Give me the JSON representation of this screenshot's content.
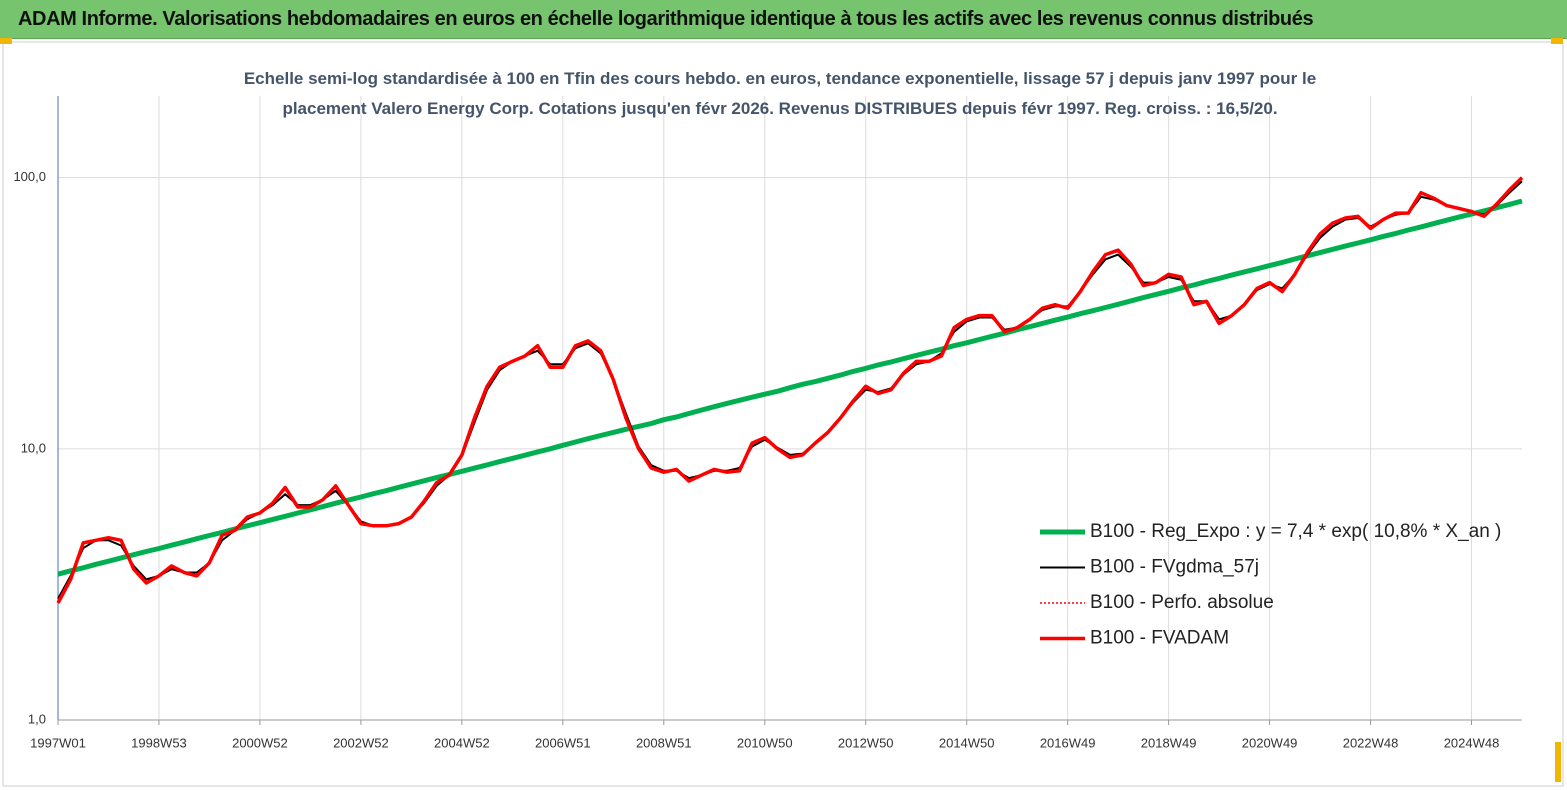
{
  "header": {
    "title": "ADAM Informe. Valorisations hebdomadaires en euros en échelle logarithmique identique à tous les actifs avec les revenus connus distribués"
  },
  "chart_data": {
    "type": "line",
    "title": "Echelle semi-log standardisée à 100 en Tfin des cours hebdo. en euros, tendance exponentielle, lissage 57 j depuis janv 1997 pour le placement Valero Energy Corp. Cotations jusqu'en févr 2026. Revenus DISTRIBUES depuis févr 1997. Reg. croiss. : 16,5/20.",
    "y_scale": "log",
    "grid": true,
    "legend": "right",
    "ylim": [
      1,
      200
    ],
    "yticks": [
      {
        "value": 1,
        "label": "1,0"
      },
      {
        "value": 10,
        "label": "10,0"
      },
      {
        "value": 100,
        "label": "100,0"
      }
    ],
    "categories": [
      "1997W01",
      null,
      null,
      null,
      null,
      null,
      null,
      null,
      "1998W53",
      null,
      null,
      null,
      null,
      null,
      null,
      null,
      "2000W52",
      null,
      null,
      null,
      null,
      null,
      null,
      null,
      "2002W52",
      null,
      null,
      null,
      null,
      null,
      null,
      null,
      "2004W52",
      null,
      null,
      null,
      null,
      null,
      null,
      null,
      "2006W51",
      null,
      null,
      null,
      null,
      null,
      null,
      null,
      "2008W51",
      null,
      null,
      null,
      null,
      null,
      null,
      null,
      "2010W50",
      null,
      null,
      null,
      null,
      null,
      null,
      null,
      "2012W50",
      null,
      null,
      null,
      null,
      null,
      null,
      null,
      "2014W50",
      null,
      null,
      null,
      null,
      null,
      null,
      null,
      "2016W49",
      null,
      null,
      null,
      null,
      null,
      null,
      null,
      "2018W49",
      null,
      null,
      null,
      null,
      null,
      null,
      null,
      "2020W49",
      null,
      null,
      null,
      null,
      null,
      null,
      null,
      "2022W48",
      null,
      null,
      null,
      null,
      null,
      null,
      null,
      "2024W48",
      null,
      null,
      null,
      null
    ],
    "series": [
      {
        "name": "B100 - Reg_Expo : y = 7,4 * exp( 10,8% *  X_an )",
        "color": "#00b050",
        "width": 5,
        "style": "solid",
        "values": [
          3.45,
          3.55,
          3.64,
          3.75,
          3.85,
          3.96,
          4.07,
          4.18,
          4.29,
          4.41,
          4.53,
          4.66,
          4.79,
          4.92,
          5.06,
          5.2,
          5.34,
          5.49,
          5.64,
          5.8,
          5.96,
          6.12,
          6.3,
          6.47,
          6.64,
          6.83,
          7.01,
          7.21,
          7.41,
          7.62,
          7.83,
          8.04,
          8.26,
          8.49,
          8.72,
          8.97,
          9.22,
          9.47,
          9.74,
          10.0,
          10.3,
          10.6,
          10.9,
          11.2,
          11.5,
          11.8,
          12.1,
          12.4,
          12.8,
          13.1,
          13.5,
          13.9,
          14.3,
          14.7,
          15.1,
          15.5,
          15.9,
          16.3,
          16.8,
          17.3,
          17.7,
          18.2,
          18.7,
          19.3,
          19.8,
          20.4,
          20.9,
          21.5,
          22.1,
          22.7,
          23.3,
          24.0,
          24.6,
          25.3,
          26.0,
          26.7,
          27.5,
          28.2,
          29.0,
          29.8,
          30.6,
          31.5,
          32.3,
          33.2,
          34.1,
          35.1,
          36.1,
          37.1,
          38.1,
          39.2,
          40.2,
          41.4,
          42.5,
          43.7,
          44.9,
          46.1,
          47.4,
          48.7,
          50.1,
          51.5,
          52.9,
          54.4,
          55.9,
          57.4,
          59.0,
          60.7,
          62.3,
          64.1,
          65.8,
          67.7,
          69.6,
          71.5,
          73.4,
          75.4,
          77.5,
          79.7,
          82.0
        ]
      },
      {
        "name": "B100 - FVgdma_57j",
        "color": "#000000",
        "width": 2,
        "style": "solid",
        "values": [
          2.8,
          3.4,
          4.3,
          4.6,
          4.6,
          4.4,
          3.7,
          3.3,
          3.4,
          3.6,
          3.5,
          3.5,
          3.8,
          4.6,
          5.0,
          5.5,
          5.8,
          6.2,
          6.8,
          6.2,
          6.2,
          6.5,
          7.0,
          6.2,
          5.4,
          5.2,
          5.2,
          5.3,
          5.6,
          6.3,
          7.3,
          8.0,
          9.4,
          12.5,
          16.5,
          19.5,
          21,
          22,
          23,
          20.5,
          20.5,
          23.5,
          24.5,
          22.5,
          18,
          13.5,
          10.2,
          8.7,
          8.3,
          8.3,
          7.8,
          8.0,
          8.3,
          8.3,
          8.5,
          10.2,
          10.8,
          10.1,
          9.5,
          9.6,
          10.5,
          11.5,
          13,
          14.8,
          16.5,
          16.2,
          16.7,
          18.8,
          20.5,
          21,
          22.5,
          27,
          29.5,
          30.5,
          30.5,
          27.5,
          28,
          30,
          32.5,
          33.5,
          33.5,
          38,
          44,
          50,
          52,
          47,
          41,
          41,
          43,
          42,
          35,
          35,
          30,
          31,
          34,
          38.5,
          40.5,
          39,
          44,
          52,
          60,
          66,
          70,
          71,
          66,
          70,
          73,
          74,
          85,
          83,
          79,
          77,
          75,
          73,
          79,
          88,
          97
        ]
      },
      {
        "name": "B100 - Perfo. absolue",
        "color": "#ff0000",
        "width": 1.5,
        "style": "dotted",
        "values": [
          2.7,
          3.3,
          4.5,
          4.6,
          4.7,
          4.6,
          3.6,
          3.2,
          3.4,
          3.7,
          3.5,
          3.4,
          3.8,
          4.8,
          5.0,
          5.6,
          5.8,
          6.3,
          7.2,
          6.1,
          6.1,
          6.5,
          7.3,
          6.2,
          5.3,
          5.2,
          5.2,
          5.3,
          5.6,
          6.4,
          7.5,
          8.0,
          9.5,
          13,
          17,
          20,
          21,
          22,
          24,
          20,
          20,
          24,
          25,
          23,
          18,
          13,
          10,
          8.5,
          8.2,
          8.4,
          7.6,
          8.0,
          8.4,
          8.2,
          8.3,
          10.5,
          11,
          10,
          9.3,
          9.5,
          10.5,
          11.5,
          13,
          15,
          17,
          16,
          16.5,
          19,
          21,
          21,
          22,
          28,
          30,
          31,
          31,
          27,
          28,
          30,
          33,
          34,
          33,
          38,
          45,
          52,
          54,
          48,
          40,
          41,
          44,
          43,
          34,
          35,
          29,
          31,
          34,
          39,
          41,
          38,
          44,
          53,
          62,
          68,
          71,
          72,
          65,
          70,
          74,
          74,
          88,
          84,
          79,
          77,
          75,
          72,
          80,
          90,
          100
        ]
      },
      {
        "name": "B100 - FVADAM",
        "color": "#ff0000",
        "width": 3.5,
        "style": "solid",
        "values": [
          2.7,
          3.3,
          4.5,
          4.6,
          4.7,
          4.6,
          3.6,
          3.2,
          3.4,
          3.7,
          3.5,
          3.4,
          3.8,
          4.8,
          5.0,
          5.6,
          5.8,
          6.3,
          7.2,
          6.1,
          6.1,
          6.5,
          7.3,
          6.2,
          5.3,
          5.2,
          5.2,
          5.3,
          5.6,
          6.4,
          7.5,
          8.0,
          9.5,
          13,
          17,
          20,
          21,
          22,
          24,
          20,
          20,
          24,
          25,
          23,
          18,
          13,
          10,
          8.5,
          8.2,
          8.4,
          7.6,
          8.0,
          8.4,
          8.2,
          8.3,
          10.5,
          11,
          10,
          9.3,
          9.5,
          10.5,
          11.5,
          13,
          15,
          17,
          16,
          16.5,
          19,
          21,
          21,
          22,
          28,
          30,
          31,
          31,
          27,
          28,
          30,
          33,
          34,
          33,
          38,
          45,
          52,
          54,
          48,
          40,
          41,
          44,
          43,
          34,
          35,
          29,
          31,
          34,
          39,
          41,
          38,
          44,
          53,
          62,
          68,
          71,
          72,
          65,
          70,
          74,
          74,
          88,
          84,
          79,
          77,
          75,
          72,
          80,
          90,
          100
        ]
      }
    ]
  }
}
